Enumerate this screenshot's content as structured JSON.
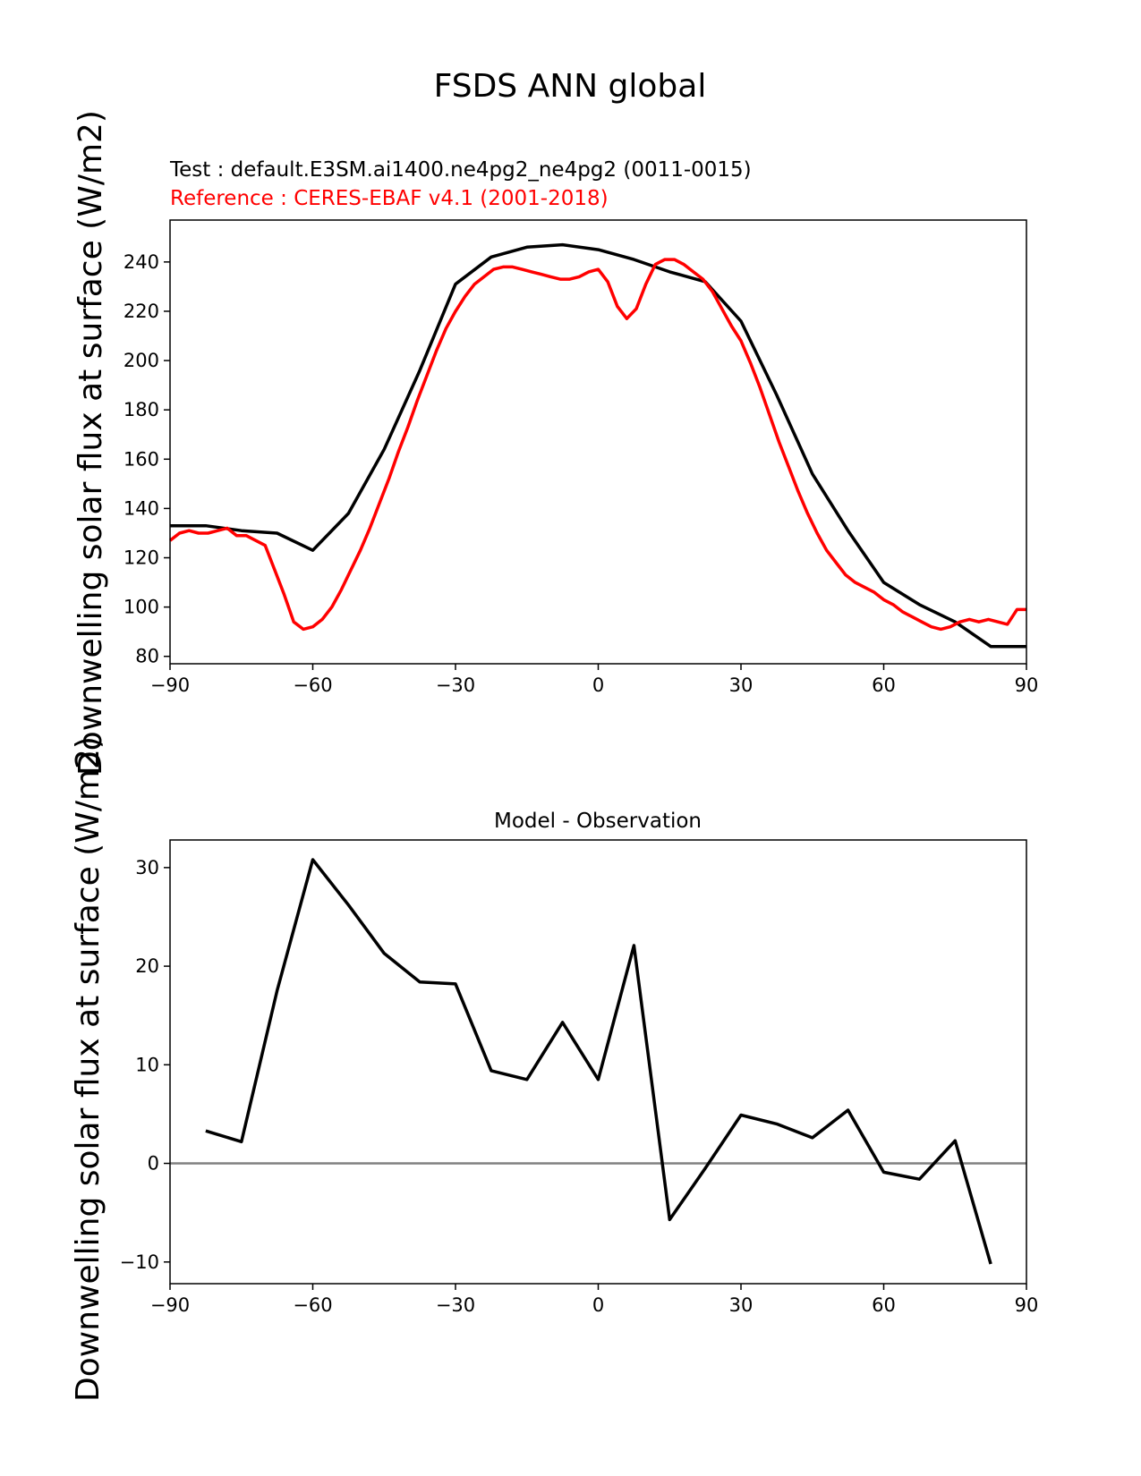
{
  "figure": {
    "suptitle": "FSDS ANN global"
  },
  "colors": {
    "test": "#000000",
    "reference": "#ff0000",
    "zero_line": "#808080",
    "axes": "#000000"
  },
  "chart_data": [
    {
      "type": "line",
      "title": "",
      "test_label": "Test : default.E3SM.ai1400.ne4pg2_ne4pg2 (0011-0015)",
      "reference_label": "Reference : CERES-EBAF v4.1 (2001-2018)",
      "xlabel": "",
      "ylabel": "Downwelling solar flux at surface (W/m2)",
      "xlim": [
        -90,
        90
      ],
      "ylim": [
        77,
        257
      ],
      "xticks": [
        "−90",
        "−60",
        "−30",
        "0",
        "30",
        "60",
        "90"
      ],
      "xtick_values": [
        -90,
        -60,
        -30,
        0,
        30,
        60,
        90
      ],
      "yticks": [
        "80",
        "100",
        "120",
        "140",
        "160",
        "180",
        "200",
        "220",
        "240"
      ],
      "ytick_values": [
        80,
        100,
        120,
        140,
        160,
        180,
        200,
        220,
        240
      ],
      "grid": false,
      "series": [
        {
          "key": "test",
          "x": [
            -90,
            -82.5,
            -75,
            -67.5,
            -60,
            -52.5,
            -45,
            -37.5,
            -30,
            -22.5,
            -15,
            -7.5,
            0,
            7.5,
            15,
            22.5,
            30,
            37.5,
            45,
            52.5,
            60,
            67.5,
            75,
            82.5,
            90
          ],
          "y": [
            133,
            133,
            131,
            130,
            123,
            138,
            164,
            196,
            231,
            242,
            246,
            247,
            245,
            241,
            236,
            232,
            216,
            186,
            154,
            131,
            110,
            101,
            94,
            84,
            84
          ]
        },
        {
          "key": "reference",
          "x": [
            -90,
            -88,
            -86,
            -84,
            -82,
            -80,
            -78,
            -76,
            -74,
            -72,
            -70,
            -68,
            -66,
            -64,
            -62,
            -60,
            -58,
            -56,
            -54,
            -52,
            -50,
            -48,
            -46,
            -44,
            -42,
            -40,
            -38,
            -36,
            -34,
            -32,
            -30,
            -28,
            -26,
            -24,
            -22,
            -20,
            -18,
            -16,
            -14,
            -12,
            -10,
            -8,
            -6,
            -4,
            -2,
            0,
            2,
            4,
            6,
            8,
            10,
            12,
            14,
            16,
            18,
            20,
            22,
            24,
            26,
            28,
            30,
            32,
            34,
            36,
            38,
            40,
            42,
            44,
            46,
            48,
            50,
            52,
            54,
            56,
            58,
            60,
            62,
            64,
            66,
            68,
            70,
            72,
            74,
            76,
            78,
            80,
            82,
            84,
            86,
            88,
            90
          ],
          "y": [
            127,
            130,
            131,
            130,
            130,
            131,
            132,
            129,
            129,
            127,
            125,
            115,
            105,
            94,
            91,
            92,
            95,
            100,
            107,
            115,
            123,
            132,
            142,
            152,
            163,
            173,
            184,
            194,
            204,
            213,
            220,
            226,
            231,
            234,
            237,
            238,
            238,
            237,
            236,
            235,
            234,
            233,
            233,
            234,
            236,
            237,
            232,
            222,
            217,
            221,
            231,
            239,
            241,
            241,
            239,
            236,
            233,
            228,
            221,
            214,
            208,
            199,
            189,
            178,
            167,
            157,
            147,
            138,
            130,
            123,
            118,
            113,
            110,
            108,
            106,
            103,
            101,
            98,
            96,
            94,
            92,
            91,
            92,
            94,
            95,
            94,
            95,
            94,
            93,
            99,
            99
          ]
        }
      ]
    },
    {
      "type": "line",
      "title": "Model - Observation",
      "xlabel": "",
      "ylabel": "Downwelling solar flux at surface (W/m2)",
      "xlim": [
        -90,
        90
      ],
      "ylim": [
        -12.2,
        32.8
      ],
      "xticks": [
        "−90",
        "−60",
        "−30",
        "0",
        "30",
        "60",
        "90"
      ],
      "xtick_values": [
        -90,
        -60,
        -30,
        0,
        30,
        60,
        90
      ],
      "yticks": [
        "−10",
        "0",
        "10",
        "20",
        "30"
      ],
      "ytick_values": [
        -10,
        0,
        10,
        20,
        30
      ],
      "grid": false,
      "zero_line": 0,
      "series": [
        {
          "key": "test",
          "x": [
            -82.5,
            -75,
            -67.5,
            -60,
            -52.5,
            -45,
            -37.5,
            -30,
            -22.5,
            -15,
            -7.5,
            0,
            7.5,
            15,
            22.5,
            30,
            37.5,
            45,
            52.5,
            60,
            67.5,
            75,
            82.5
          ],
          "y": [
            3.3,
            2.2,
            17.5,
            30.8,
            26.2,
            21.3,
            18.4,
            18.2,
            9.4,
            8.5,
            14.3,
            8.5,
            22.1,
            -5.7,
            -0.5,
            4.9,
            4,
            2.6,
            5.4,
            -0.9,
            -1.6,
            2.3,
            -10.2
          ]
        }
      ]
    }
  ]
}
